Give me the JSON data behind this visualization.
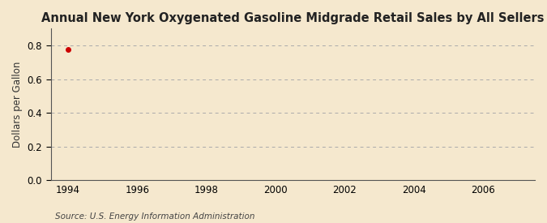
{
  "title": "Annual New York Oxygenated Gasoline Midgrade Retail Sales by All Sellers",
  "ylabel": "Dollars per Gallon",
  "source_text": "Source: U.S. Energy Information Administration",
  "xlim": [
    1993.5,
    2007.5
  ],
  "ylim": [
    0.0,
    0.9
  ],
  "xticks": [
    1994,
    1996,
    1998,
    2000,
    2002,
    2004,
    2006
  ],
  "yticks": [
    0.0,
    0.2,
    0.4,
    0.6,
    0.8
  ],
  "background_color": "#f5e8ce",
  "plot_bg_color": "#f5e8ce",
  "grid_color": "#aaaaaa",
  "spine_color": "#555555",
  "title_fontsize": 10.5,
  "label_fontsize": 8.5,
  "tick_fontsize": 8.5,
  "source_fontsize": 7.5,
  "data_x": [
    1994
  ],
  "data_y": [
    0.775
  ],
  "data_color": "#cc0000"
}
